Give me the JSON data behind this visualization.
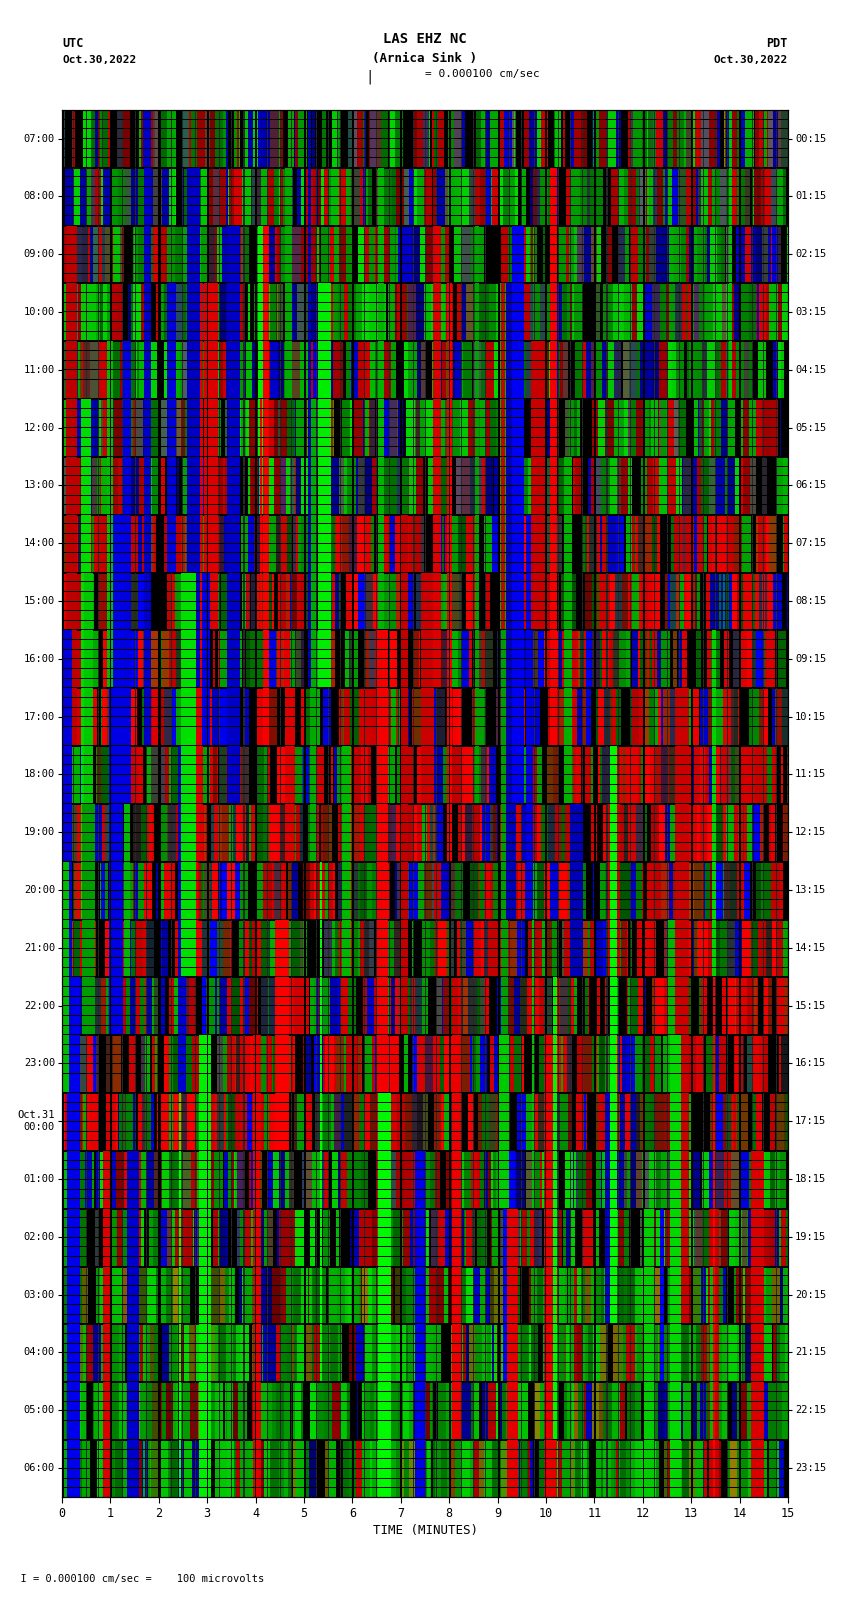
{
  "title_line1": "LAS EHZ NC",
  "title_line2": "(Arnica Sink )",
  "scale_label": "I = 0.000100 cm/sec",
  "footer_label": "  I = 0.000100 cm/sec =    100 microvolts",
  "utc_top": "UTC",
  "utc_date": "Oct.30,2022",
  "pdt_top": "PDT",
  "pdt_date": "Oct.30,2022",
  "left_times": [
    "07:00",
    "08:00",
    "09:00",
    "10:00",
    "11:00",
    "12:00",
    "13:00",
    "14:00",
    "15:00",
    "16:00",
    "17:00",
    "18:00",
    "19:00",
    "20:00",
    "21:00",
    "22:00",
    "23:00",
    "Oct.31\n00:00",
    "01:00",
    "02:00",
    "03:00",
    "04:00",
    "05:00",
    "06:00"
  ],
  "right_times": [
    "00:15",
    "01:15",
    "02:15",
    "03:15",
    "04:15",
    "05:15",
    "06:15",
    "07:15",
    "08:15",
    "09:15",
    "10:15",
    "11:15",
    "12:15",
    "13:15",
    "14:15",
    "15:15",
    "16:15",
    "17:15",
    "18:15",
    "19:15",
    "20:15",
    "21:15",
    "22:15",
    "23:15"
  ],
  "xlabel": "TIME (MINUTES)",
  "x_ticks": [
    0,
    1,
    2,
    3,
    4,
    5,
    6,
    7,
    8,
    9,
    10,
    11,
    12,
    13,
    14,
    15
  ],
  "n_rows": 24,
  "seed": 12345
}
